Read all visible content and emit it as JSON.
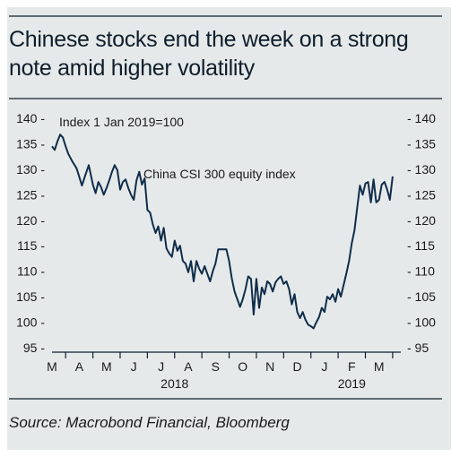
{
  "title": "Chinese stocks end the week on a strong note amid higher volatility",
  "source": "Source: Macrobond Financial, Bloomberg",
  "chart_data": {
    "type": "line",
    "title": "Chinese stocks end the week on a strong note amid higher volatility",
    "subtitle": "Index 1 Jan 2019=100",
    "xlabel": "",
    "ylabel": "",
    "ylim": [
      95,
      140
    ],
    "yticks": [
      95,
      100,
      105,
      110,
      115,
      120,
      125,
      130,
      135,
      140
    ],
    "grid": false,
    "legend": "none",
    "month_ticks": [
      "M",
      "A",
      "M",
      "J",
      "J",
      "A",
      "S",
      "O",
      "N",
      "D",
      "J",
      "F",
      "M"
    ],
    "year_labels": [
      "2018",
      "2019"
    ],
    "color": "#0f2d4a",
    "series": [
      {
        "name": "China CSI 300 equity index",
        "x": [
          0.0,
          0.1,
          0.2,
          0.3,
          0.4,
          0.5,
          0.6,
          0.75,
          0.9,
          1.0,
          1.1,
          1.2,
          1.35,
          1.5,
          1.6,
          1.7,
          1.8,
          1.9,
          2.0,
          2.1,
          2.2,
          2.3,
          2.4,
          2.5,
          2.6,
          2.7,
          2.8,
          2.9,
          3.0,
          3.1,
          3.2,
          3.3,
          3.4,
          3.5,
          3.6,
          3.7,
          3.8,
          3.9,
          4.0,
          4.1,
          4.2,
          4.3,
          4.4,
          4.5,
          4.6,
          4.7,
          4.8,
          4.9,
          5.0,
          5.1,
          5.2,
          5.3,
          5.4,
          5.5,
          5.6,
          5.7,
          5.8,
          5.9,
          6.0,
          6.1,
          6.2,
          6.3,
          6.4,
          6.5,
          6.6,
          6.7,
          6.8,
          6.9,
          7.0,
          7.1,
          7.2,
          7.3,
          7.4,
          7.5,
          7.6,
          7.7,
          7.8,
          7.9,
          8.0,
          8.1,
          8.2,
          8.3,
          8.4,
          8.5,
          8.6,
          8.7,
          8.8,
          8.9,
          9.0,
          9.1,
          9.2,
          9.3,
          9.4,
          9.5,
          9.6,
          9.7,
          9.8,
          9.9,
          10.0,
          10.1,
          10.2,
          10.3,
          10.4,
          10.5,
          10.6,
          10.7,
          10.8,
          10.9,
          11.0,
          11.1,
          11.2,
          11.3,
          11.4,
          11.5,
          11.6,
          11.7,
          11.8,
          11.9,
          12.0,
          12.1,
          12.2,
          12.3,
          12.4,
          12.5
        ],
        "y": [
          134.5,
          133.8,
          135.5,
          136.8,
          136.2,
          134.5,
          133.0,
          131.5,
          130.2,
          128.5,
          126.8,
          128.5,
          130.8,
          127.0,
          125.3,
          127.5,
          126.5,
          125.0,
          126.3,
          127.8,
          129.5,
          130.8,
          129.8,
          126.0,
          127.5,
          128.0,
          126.3,
          125.0,
          124.0,
          127.8,
          129.5,
          127.0,
          128.2,
          122.0,
          121.5,
          119.2,
          117.5,
          118.8,
          116.0,
          118.5,
          114.5,
          113.5,
          112.8,
          116.0,
          114.0,
          115.0,
          112.0,
          111.5,
          109.8,
          112.0,
          108.0,
          112.0,
          110.5,
          109.5,
          111.0,
          109.5,
          108.0,
          110.0,
          111.5,
          114.3,
          114.3,
          114.3,
          114.3,
          112.0,
          108.5,
          106.0,
          104.5,
          103.0,
          104.5,
          106.5,
          109.0,
          108.5,
          101.5,
          108.5,
          102.8,
          106.8,
          105.5,
          108.0,
          107.5,
          106.0,
          107.8,
          108.5,
          109.0,
          107.5,
          108.0,
          106.5,
          103.5,
          105.5,
          102.0,
          100.8,
          102.0,
          100.5,
          99.5,
          99.2,
          98.8,
          100.0,
          101.0,
          102.8,
          102.0,
          105.0,
          104.5,
          105.5,
          104.0,
          106.5,
          105.0,
          107.3,
          109.5,
          112.0,
          115.5,
          118.0,
          122.5,
          126.8,
          125.0,
          127.2,
          127.5,
          123.5,
          128.0,
          123.5,
          124.0,
          127.0,
          127.5,
          126.0,
          124.0,
          128.6
        ]
      }
    ]
  }
}
